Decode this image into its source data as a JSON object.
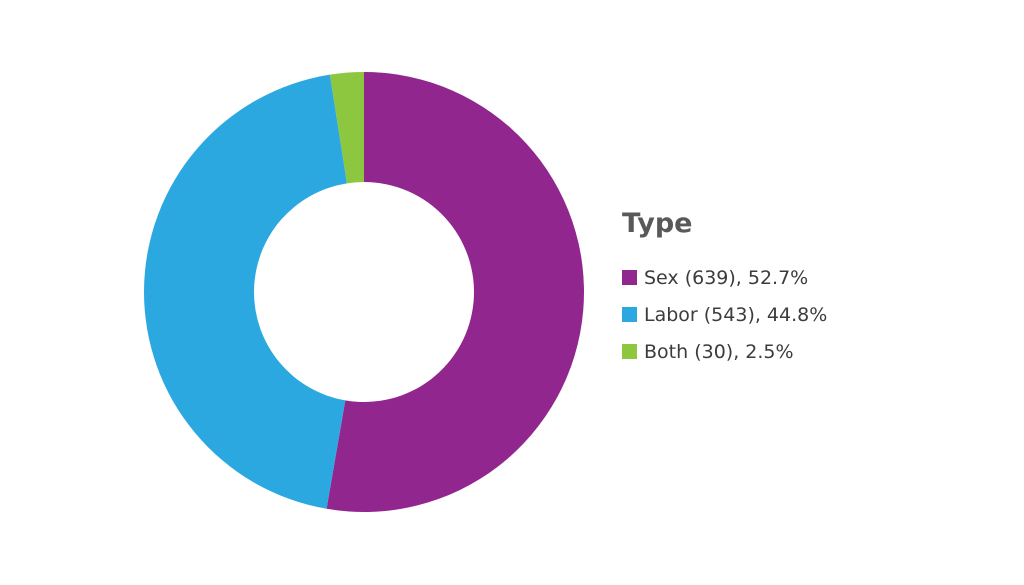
{
  "chart_data": {
    "type": "pie",
    "variant": "donut",
    "legend_title": "Type",
    "legend_position": "right",
    "slices": [
      {
        "label": "Sex (639), 52.7%",
        "category": "Sex",
        "count": 639,
        "percent": 52.7,
        "color": "#91268f"
      },
      {
        "label": "Labor (543), 44.8%",
        "category": "Labor",
        "count": 543,
        "percent": 44.8,
        "color": "#2ba8e0"
      },
      {
        "label": "Both (30), 2.5%",
        "category": "Both",
        "count": 30,
        "percent": 2.5,
        "color": "#8dc63f"
      }
    ]
  }
}
